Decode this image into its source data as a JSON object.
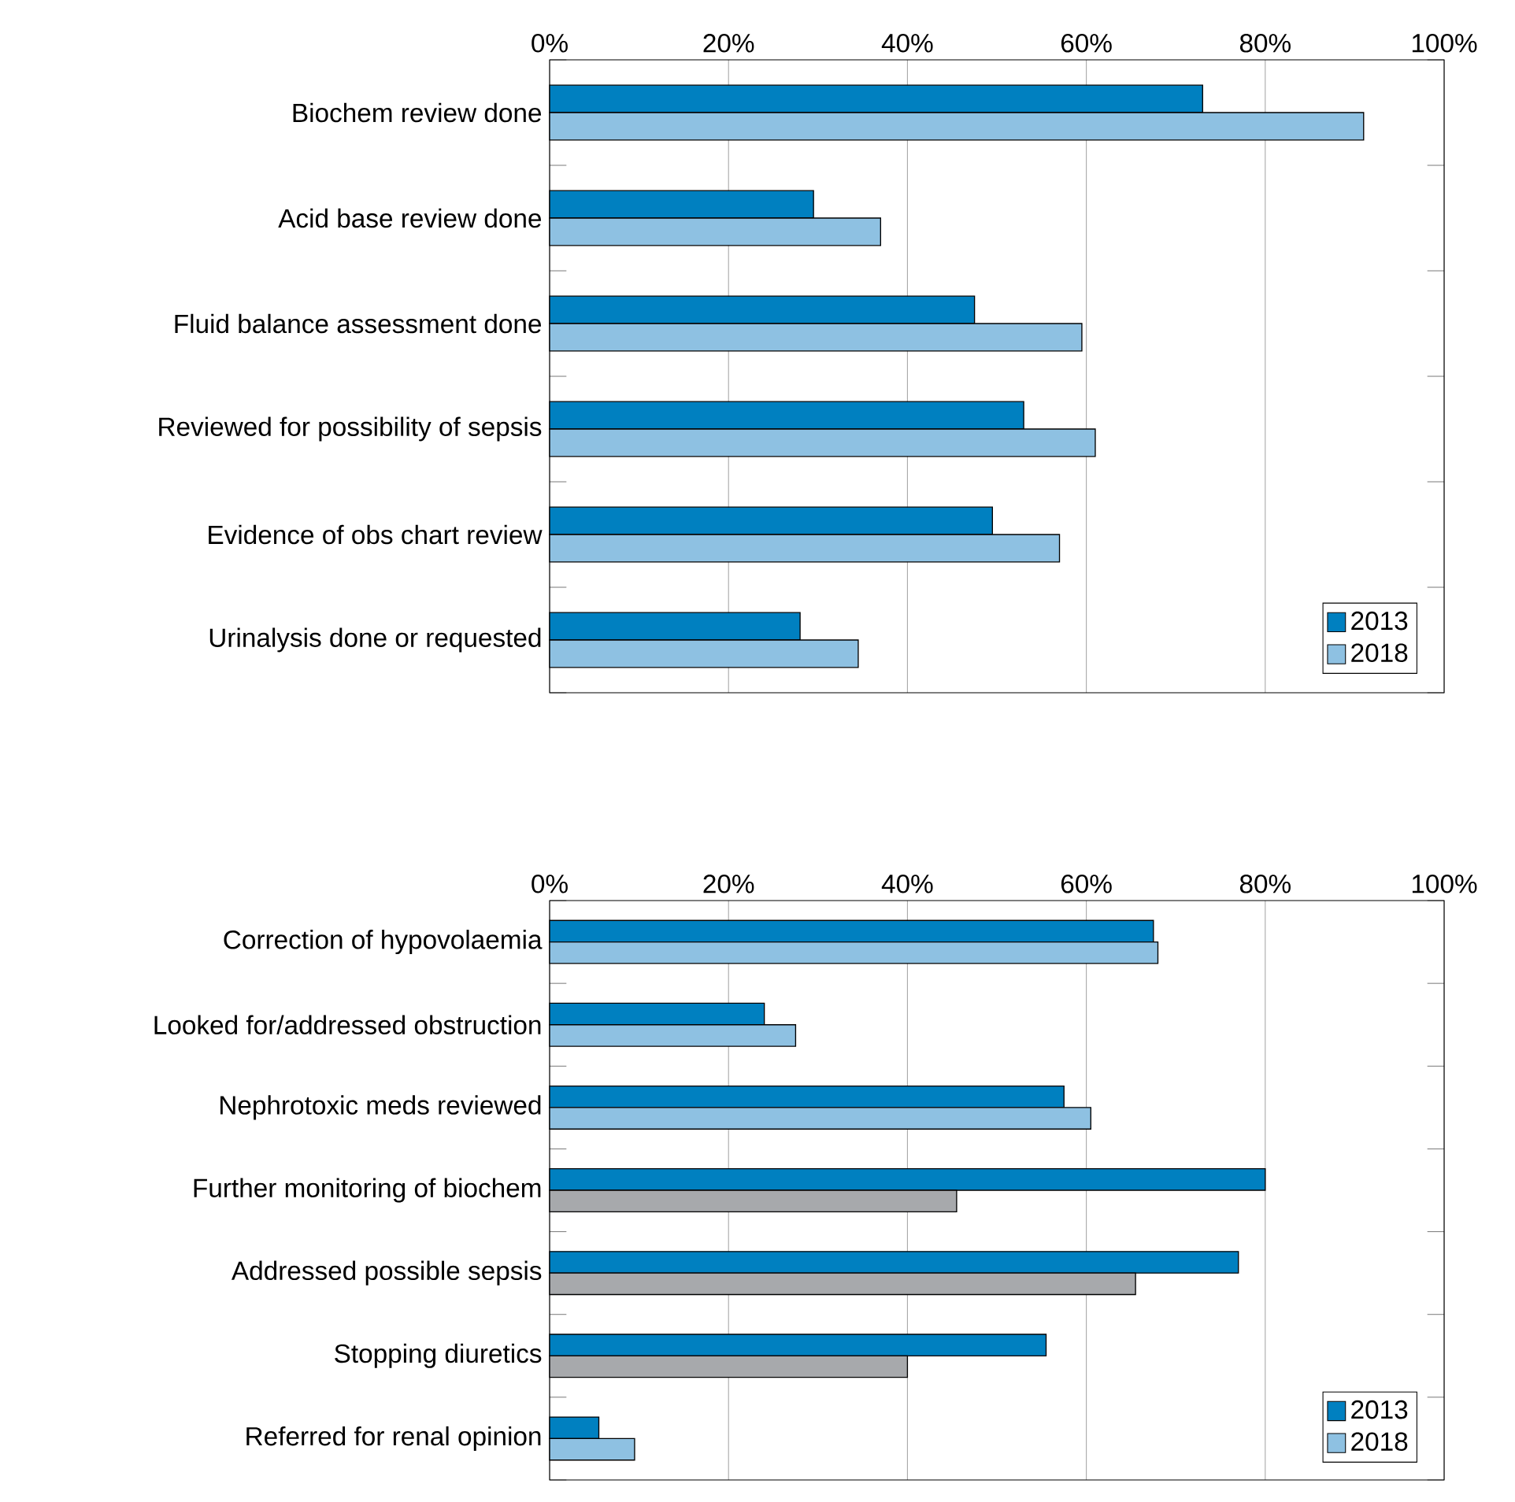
{
  "chart_data": [
    {
      "type": "bar",
      "orientation": "horizontal",
      "categories": [
        "Biochem review done",
        "Acid base review done",
        "Fluid balance assessment done",
        "Reviewed for possibility of sepsis",
        "Evidence of obs chart review",
        "Urinalysis done or requested"
      ],
      "series": [
        {
          "name": "2013",
          "color": "#0080c0",
          "values": [
            73,
            29.5,
            47.5,
            53,
            49.5,
            28
          ]
        },
        {
          "name": "2018",
          "color": "#8ec1e2",
          "values": [
            91,
            37,
            59.5,
            61,
            57,
            34.5
          ]
        }
      ],
      "xlim": [
        0,
        100
      ],
      "xticks": [
        {
          "value": 0,
          "label": "0%"
        },
        {
          "value": 20,
          "label": "20%"
        },
        {
          "value": 40,
          "label": "40%"
        },
        {
          "value": 60,
          "label": "60%"
        },
        {
          "value": 80,
          "label": "80%"
        },
        {
          "value": 100,
          "label": "100%"
        }
      ],
      "grid": "x",
      "legend": "bottom right"
    },
    {
      "type": "bar",
      "orientation": "horizontal",
      "categories": [
        "Correction of hypovolaemia",
        "Looked for/addressed obstruction",
        "Nephrotoxic meds reviewed",
        "Further monitoring of biochem",
        "Addressed possible sepsis",
        "Stopping diuretics",
        "Referred for renal opinion"
      ],
      "series": [
        {
          "name": "2013",
          "color": "#0080c0",
          "values": [
            67.5,
            24,
            57.5,
            80,
            77,
            55.5,
            5.5
          ]
        },
        {
          "name": "2018",
          "color": "#8ec1e2",
          "colors": [
            "#8ec1e2",
            "#8ec1e2",
            "#8ec1e2",
            "#a7a9ac",
            "#a7a9ac",
            "#a7a9ac",
            "#8ec1e2"
          ],
          "values": [
            68,
            27.5,
            60.5,
            45.5,
            65.5,
            40,
            9.5
          ]
        }
      ],
      "xlim": [
        0,
        100
      ],
      "xticks": [
        {
          "value": 0,
          "label": "0%"
        },
        {
          "value": 20,
          "label": "20%"
        },
        {
          "value": 40,
          "label": "40%"
        },
        {
          "value": 60,
          "label": "60%"
        },
        {
          "value": 80,
          "label": "80%"
        },
        {
          "value": 100,
          "label": "100%"
        }
      ],
      "grid": "x",
      "legend": "bottom right"
    }
  ]
}
